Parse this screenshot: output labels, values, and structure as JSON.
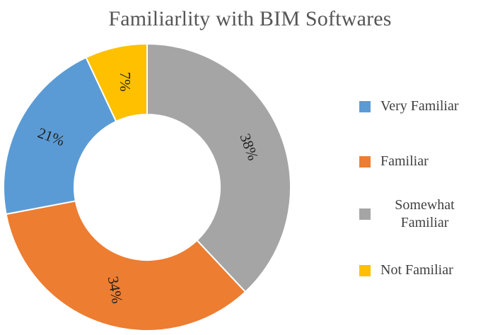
{
  "chart_data": {
    "type": "donut",
    "title": "Familiarlity with BIM Softwares",
    "categories": [
      "Very Familiar",
      "Familiar",
      "Somewhat Familiar",
      "Not Familiar"
    ],
    "values": [
      21,
      34,
      38,
      7
    ],
    "labels": [
      "21%",
      "34%",
      "38%",
      "7%"
    ],
    "colors": [
      "#5B9BD5",
      "#ED7D31",
      "#A5A5A5",
      "#FFC000"
    ],
    "legend_position": "right"
  },
  "legend": {
    "items": [
      {
        "label": "Very Familiar",
        "color": "#5B9BD5"
      },
      {
        "label": "Familiar",
        "color": "#ED7D31"
      },
      {
        "label": "Somewhat Familiar",
        "color": "#A5A5A5"
      },
      {
        "label": "Not Familiar",
        "color": "#FFC000"
      }
    ]
  }
}
